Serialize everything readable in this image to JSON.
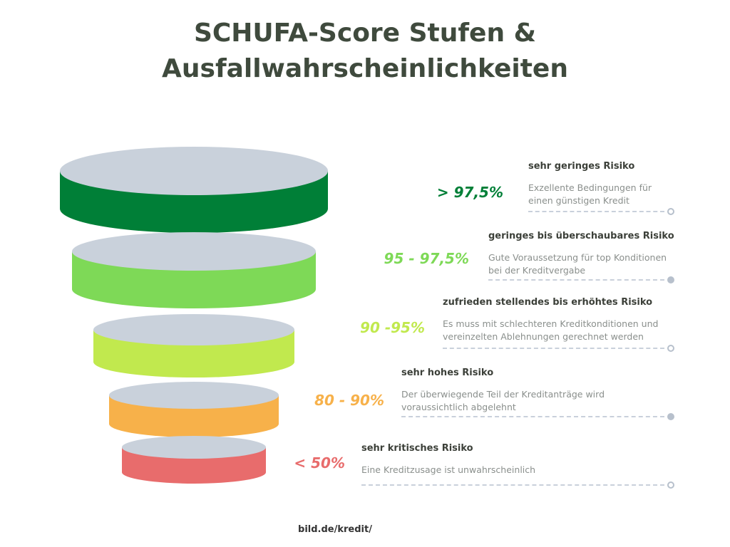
{
  "title": {
    "line1": "SCHUFA-Score Stufen &",
    "line2": "Ausfallwahrscheinlichkeiten"
  },
  "levels": [
    {
      "percent": "> 97,5%",
      "heading": "sehr geringes Risiko",
      "desc": "Exzellente Bedingungen für einen günstigen Kredit",
      "color": "#007f37",
      "dot": "hollow"
    },
    {
      "percent": "95 - 97,5%",
      "heading": "geringes bis überschaubares Risiko",
      "desc": "Gute Voraussetzung für top Konditionen bei der Kreditvergabe",
      "color": "#7ed957",
      "dot": "filled"
    },
    {
      "percent": "90 -95%",
      "heading": "zufrieden stellendes bis erhöhtes Risiko",
      "desc": "Es muss mit schlechteren Kreditkonditionen und vereinzelten Ablehnungen gerechnet werden",
      "color": "#c1e94e",
      "dot": "hollow"
    },
    {
      "percent": "80 - 90%",
      "heading": "sehr hohes Risiko",
      "desc": "Der überwiegende Teil der Kreditanträge wird voraussichtlich abgelehnt",
      "color": "#f7b14a",
      "dot": "filled"
    },
    {
      "percent": "< 50%",
      "heading": "sehr kritisches Risiko",
      "desc": "Eine Kreditzusage ist unwahrscheinlich",
      "color": "#e86c6c",
      "dot": "hollow"
    }
  ],
  "top_color": "#c9d1db",
  "source": "bild.de/kredit/"
}
